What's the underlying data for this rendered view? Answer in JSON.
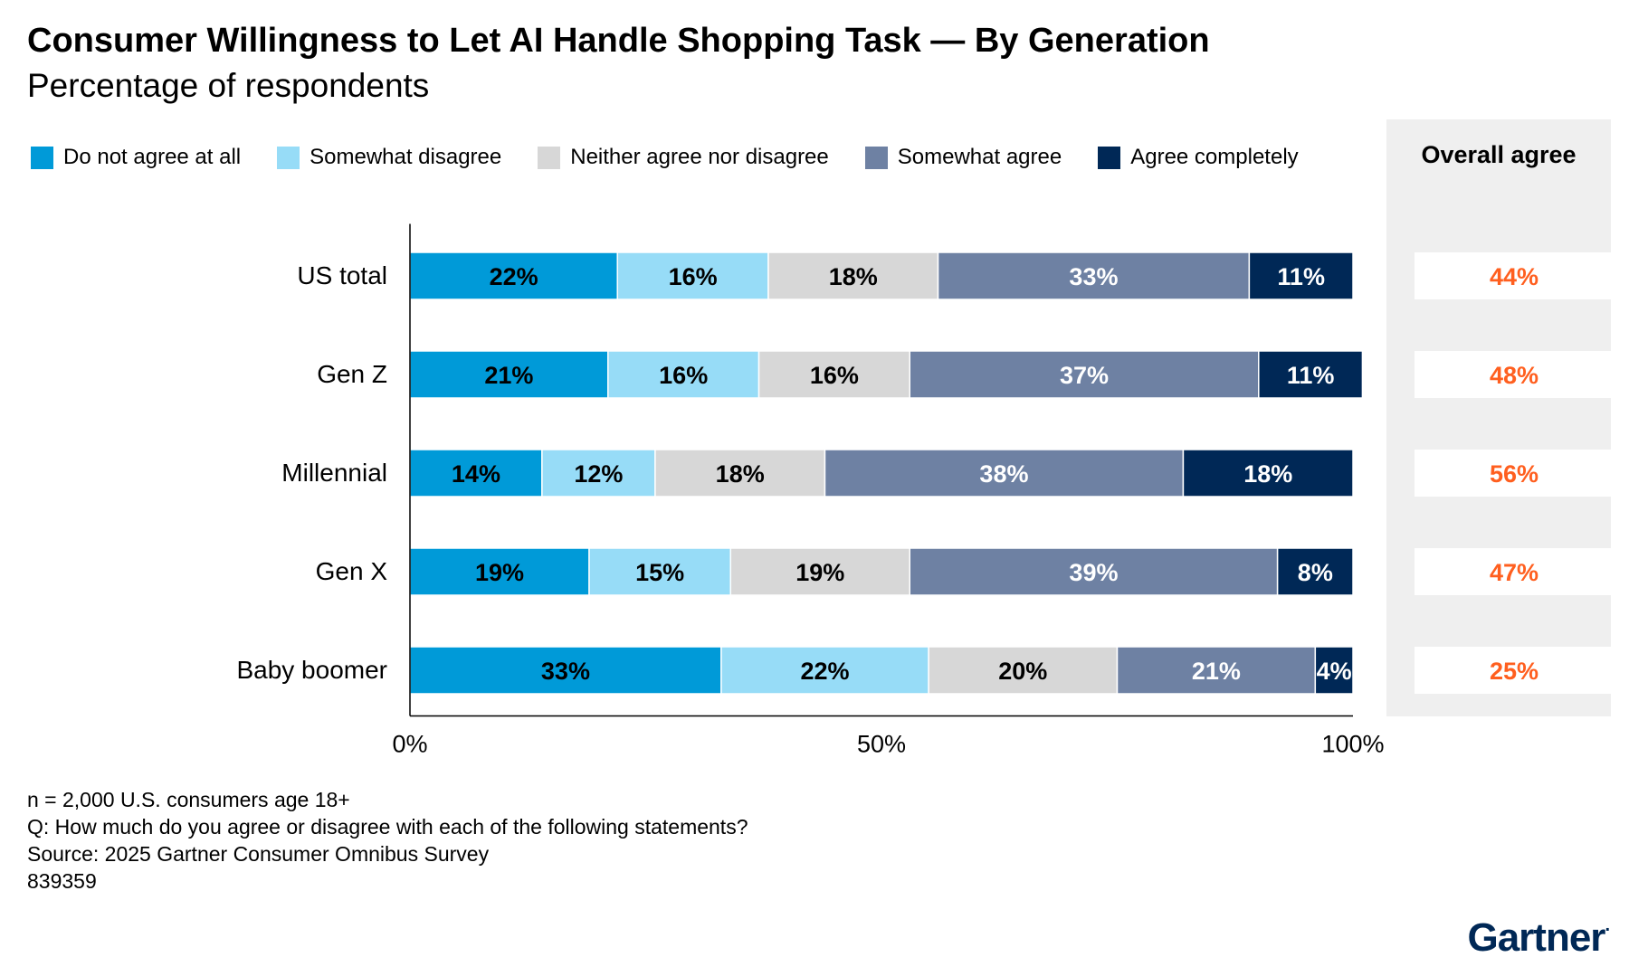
{
  "title": "Consumer Willingness to Let AI Handle Shopping Task — By Generation",
  "subtitle": "Percentage of respondents",
  "overall_header": "Overall agree",
  "overall_color": "#ff5f1f",
  "logo": "Gartner",
  "notes": [
    "n = 2,000 U.S. consumers age 18+",
    "Q: How much do you agree or disagree with each of the following statements?",
    "Source: 2025 Gartner Consumer Omnibus Survey",
    "839359"
  ],
  "chart_data": {
    "type": "bar",
    "orientation": "horizontal",
    "stacked": true,
    "categories": [
      "US total",
      "Gen Z",
      "Millennial",
      "Gen X",
      "Baby boomer"
    ],
    "series": [
      {
        "name": "Do not agree at all",
        "color": "#009ad8",
        "label_color": "#000000",
        "values": [
          22,
          21,
          14,
          19,
          33
        ]
      },
      {
        "name": "Somewhat disagree",
        "color": "#97dcf7",
        "label_color": "#000000",
        "values": [
          16,
          16,
          12,
          15,
          22
        ]
      },
      {
        "name": "Neither agree nor disagree",
        "color": "#d7d7d7",
        "label_color": "#000000",
        "values": [
          18,
          16,
          18,
          19,
          20
        ]
      },
      {
        "name": "Somewhat agree",
        "color": "#6e81a3",
        "label_color": "#ffffff",
        "values": [
          33,
          37,
          38,
          39,
          21
        ]
      },
      {
        "name": "Agree completely",
        "color": "#002856",
        "label_color": "#ffffff",
        "values": [
          11,
          11,
          18,
          8,
          4
        ]
      }
    ],
    "overall_agree": [
      44,
      48,
      56,
      47,
      25
    ],
    "xlim": [
      0,
      100
    ],
    "x_ticks": [
      0,
      50,
      100
    ],
    "x_tick_labels": [
      "0%",
      "50%",
      "100%"
    ],
    "grid": false,
    "legend_position": "top"
  }
}
